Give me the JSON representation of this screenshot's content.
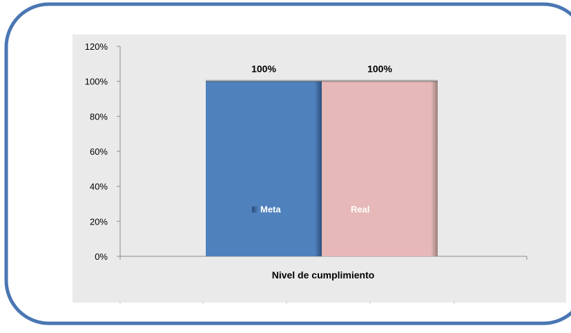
{
  "chart_data": {
    "type": "bar",
    "categories": [
      "Nivel de cumplimiento"
    ],
    "xlabel": "Nivel de cumplimiento",
    "ylim": [
      0,
      120
    ],
    "yticks": [
      "0%",
      "20%",
      "40%",
      "60%",
      "80%",
      "100%",
      "120%"
    ],
    "ytick_values": [
      0,
      20,
      40,
      60,
      80,
      100,
      120
    ],
    "series": [
      {
        "name": "Meta",
        "values": [
          100
        ],
        "data_label": "100%",
        "color": "#4f81bd"
      },
      {
        "name": "Real",
        "values": [
          100
        ],
        "data_label": "100%",
        "color": "#e6b9b8"
      }
    ],
    "legend_placement": "inside-bars",
    "grid": false,
    "colors": {
      "frame": "#4a76b3",
      "plot_background": "#eaeaea",
      "axis": "#8c8c8c"
    }
  }
}
